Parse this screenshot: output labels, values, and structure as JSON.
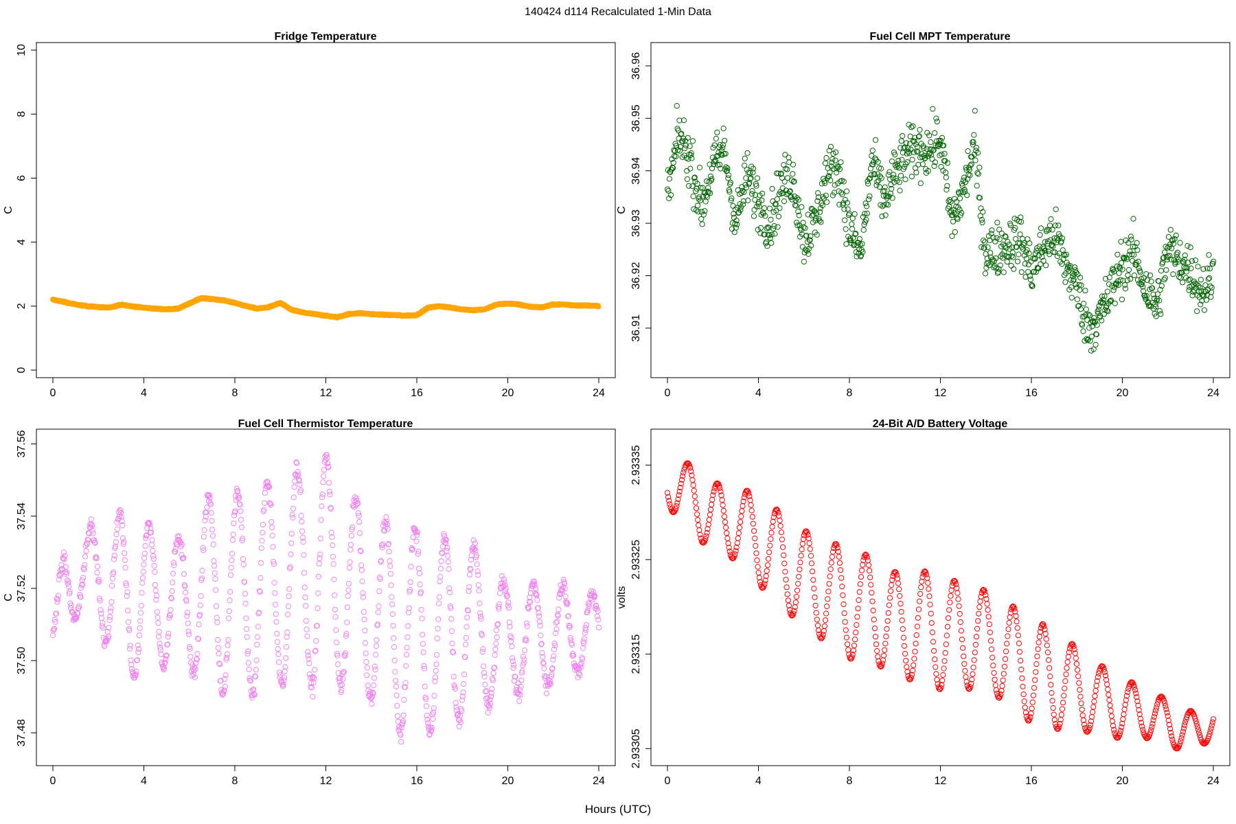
{
  "figure": {
    "title": "140424   d114   Recalculated 1-Min Data",
    "xlabel": "Hours (UTC)"
  },
  "chart_data": [
    {
      "type": "scatter",
      "id": "fridge",
      "title": "Fridge Temperature",
      "xlabel": "Hours (UTC)",
      "ylabel": "C",
      "xlim": [
        0,
        24
      ],
      "ylim": [
        0,
        10
      ],
      "xticks": [
        "0",
        "4",
        "8",
        "12",
        "16",
        "20",
        "24"
      ],
      "yticks": [
        "0",
        "2",
        "4",
        "6",
        "8",
        "10"
      ],
      "color": "#FFA500",
      "series": [
        {
          "name": "Fridge Temperature",
          "x": [
            0,
            0.5,
            1,
            1.5,
            2,
            2.5,
            3,
            3.5,
            4,
            4.5,
            5,
            5.5,
            6,
            6.5,
            7,
            7.5,
            8,
            8.5,
            9,
            9.5,
            10,
            10.5,
            11,
            11.5,
            12,
            12.5,
            13,
            13.5,
            14,
            14.5,
            15,
            15.5,
            16,
            16.5,
            17,
            17.5,
            18,
            18.5,
            19,
            19.5,
            20,
            20.5,
            21,
            21.5,
            22,
            22.5,
            23,
            23.5,
            24
          ],
          "y": [
            2.2,
            2.13,
            2.05,
            2.0,
            1.97,
            1.95,
            2.05,
            1.99,
            1.95,
            1.92,
            1.9,
            1.92,
            2.08,
            2.25,
            2.22,
            2.18,
            2.1,
            2.0,
            1.92,
            1.97,
            2.1,
            1.88,
            1.8,
            1.75,
            1.7,
            1.65,
            1.75,
            1.78,
            1.75,
            1.73,
            1.72,
            1.7,
            1.72,
            1.95,
            2.0,
            1.95,
            1.9,
            1.87,
            1.9,
            2.05,
            2.08,
            2.05,
            1.98,
            1.96,
            2.05,
            2.05,
            2.02,
            2.02,
            2.0
          ]
        }
      ]
    },
    {
      "type": "scatter",
      "id": "mpt",
      "title": "Fuel Cell MPT Temperature",
      "xlabel": "Hours (UTC)",
      "ylabel": "C",
      "xlim": [
        0,
        24
      ],
      "ylim": [
        36.902,
        36.963
      ],
      "xticks": [
        "0",
        "4",
        "8",
        "12",
        "16",
        "20",
        "24"
      ],
      "yticks": [
        "36.91",
        "36.92",
        "36.93",
        "36.94",
        "36.95",
        "36.96"
      ],
      "color": "#006400",
      "series": [
        {
          "name": "Fuel Cell MPT Temperature",
          "x": [
            0,
            0.5,
            1,
            1.5,
            2,
            2.5,
            3,
            3.5,
            4,
            4.5,
            5,
            5.5,
            6,
            6.5,
            7,
            7.5,
            8,
            8.5,
            9,
            9.5,
            10,
            10.5,
            11,
            11.5,
            12,
            12.5,
            13,
            13.5,
            14,
            14.5,
            15,
            15.5,
            16,
            16.5,
            17,
            17.5,
            18,
            18.5,
            19,
            19.5,
            20,
            20.5,
            21,
            21.5,
            22,
            22.5,
            23,
            23.5,
            24
          ],
          "y": [
            36.935,
            36.947,
            36.942,
            36.933,
            36.941,
            36.944,
            36.93,
            36.939,
            36.934,
            36.93,
            36.937,
            36.939,
            36.927,
            36.93,
            36.939,
            36.941,
            36.929,
            36.924,
            36.942,
            36.934,
            36.939,
            36.943,
            36.944,
            36.944,
            36.946,
            36.93,
            36.936,
            36.945,
            36.924,
            36.925,
            36.926,
            36.927,
            36.921,
            36.925,
            36.928,
            36.922,
            36.918,
            36.91,
            36.912,
            36.917,
            36.922,
            36.924,
            36.918,
            36.914,
            36.925,
            36.923,
            36.921,
            36.917,
            36.92
          ],
          "spread": 0.0065
        }
      ]
    },
    {
      "type": "scatter",
      "id": "thermistor",
      "title": "Fuel Cell Thermistor Temperature",
      "xlabel": "Hours (UTC)",
      "ylabel": "C",
      "xlim": [
        0,
        24
      ],
      "ylim": [
        37.473,
        37.562
      ],
      "xticks": [
        "0",
        "4",
        "8",
        "12",
        "16",
        "20",
        "24"
      ],
      "yticks": [
        "37.48",
        "37.50",
        "37.52",
        "37.54",
        "37.56"
      ],
      "color": "#EE82EE",
      "series": [
        {
          "name": "Fuel Cell Thermistor Temperature",
          "x": [
            0,
            0.5,
            1,
            1.5,
            2,
            2.5,
            3,
            3.5,
            4,
            4.5,
            5,
            5.5,
            6,
            6.5,
            7,
            7.5,
            8,
            8.5,
            9,
            9.5,
            10,
            10.5,
            11,
            11.5,
            12,
            12.5,
            13,
            13.5,
            14,
            14.5,
            15,
            15.5,
            16,
            16.5,
            17,
            17.5,
            18,
            18.5,
            19,
            19.5,
            20,
            20.5,
            21,
            21.5,
            22,
            22.5,
            23,
            23.5,
            24
          ],
          "y": [
            37.507,
            37.52,
            37.526,
            37.52,
            37.526,
            37.52,
            37.52,
            37.518,
            37.517,
            37.517,
            37.518,
            37.516,
            37.518,
            37.518,
            37.52,
            37.52,
            37.519,
            37.518,
            37.52,
            37.519,
            37.523,
            37.521,
            37.525,
            37.522,
            37.528,
            37.521,
            37.52,
            37.516,
            37.516,
            37.511,
            37.51,
            37.508,
            37.507,
            37.508,
            37.506,
            37.506,
            37.51,
            37.509,
            37.507,
            37.507,
            37.505,
            37.506,
            37.507,
            37.507,
            37.507,
            37.508,
            37.508,
            37.508,
            37.508
          ],
          "amplitude": [
            0.003,
            0.012,
            0.014,
            0.015,
            0.016,
            0.018,
            0.021,
            0.023,
            0.021,
            0.02,
            0.019,
            0.018,
            0.02,
            0.024,
            0.027,
            0.029,
            0.028,
            0.028,
            0.03,
            0.031,
            0.03,
            0.031,
            0.03,
            0.03,
            0.029,
            0.028,
            0.027,
            0.028,
            0.027,
            0.028,
            0.028,
            0.03,
            0.029,
            0.028,
            0.028,
            0.028,
            0.025,
            0.023,
            0.02,
            0.018,
            0.016,
            0.015,
            0.014,
            0.014,
            0.014,
            0.013,
            0.012,
            0.011,
            0.01
          ],
          "period_hours": 1.3
        }
      ]
    },
    {
      "type": "scatter",
      "id": "battery",
      "title": "24-Bit A/D Battery Voltage",
      "xlabel": "Hours (UTC)",
      "ylabel": "volts",
      "xlim": [
        0,
        24
      ],
      "ylim": [
        2.93304,
        2.93338
      ],
      "xticks": [
        "0",
        "4",
        "8",
        "12",
        "16",
        "20",
        "24"
      ],
      "yticks": [
        "2.93305",
        "2.93315",
        "2.93325",
        "2.93335"
      ],
      "color": "#FF0000",
      "series": [
        {
          "name": "24-Bit A/D Battery Voltage",
          "x": [
            0,
            0.5,
            1,
            1.5,
            2,
            2.5,
            3,
            3.5,
            4,
            4.5,
            5,
            5.5,
            6,
            6.5,
            7,
            7.5,
            8,
            8.5,
            9,
            9.5,
            10,
            10.5,
            11,
            11.5,
            12,
            12.5,
            13,
            13.5,
            14,
            14.5,
            15,
            15.5,
            16,
            16.5,
            17,
            17.5,
            18,
            18.5,
            19,
            19.5,
            20,
            20.5,
            21,
            21.5,
            22,
            22.5,
            23,
            23.5,
            24
          ],
          "y": [
            2.93333,
            2.93333,
            2.93332,
            2.9333,
            2.9333,
            2.93329,
            2.93329,
            2.93328,
            2.93327,
            2.93326,
            2.93325,
            2.93324,
            2.93323,
            2.93322,
            2.93322,
            2.93321,
            2.9332,
            2.9332,
            2.9332,
            2.93319,
            2.93318,
            2.93318,
            2.93318,
            2.93318,
            2.93317,
            2.93317,
            2.93317,
            2.93317,
            2.93316,
            2.93316,
            2.93315,
            2.93314,
            2.93313,
            2.93313,
            2.93312,
            2.93312,
            2.93311,
            2.93311,
            2.9331,
            2.9331,
            2.93309,
            2.93309,
            2.93309,
            2.93308,
            2.93308,
            2.93307,
            2.93307,
            2.93307,
            2.93308
          ],
          "amplitude": [
            3e-05,
            3e-05,
            3e-05,
            3.2e-05,
            3.4e-05,
            3.6e-05,
            4e-05,
            4.3e-05,
            4.6e-05,
            4.8e-05,
            5e-05,
            5e-05,
            5.2e-05,
            5.3e-05,
            5.4e-05,
            5.5e-05,
            5.5e-05,
            5.5e-05,
            5.6e-05,
            5.6e-05,
            5.7e-05,
            5.7e-05,
            5.7e-05,
            5.8e-05,
            5.8e-05,
            5.8e-05,
            5.7e-05,
            5.7e-05,
            5.6e-05,
            5.5e-05,
            5.5e-05,
            5.4e-05,
            5.3e-05,
            5.2e-05,
            5e-05,
            4.8e-05,
            4.6e-05,
            4.2e-05,
            3.8e-05,
            3.5e-05,
            3.2e-05,
            3e-05,
            2.8e-05,
            2.6e-05,
            2.4e-05,
            2.2e-05,
            2e-05,
            1.8e-05,
            1.6e-05
          ],
          "period_hours": 1.3
        }
      ]
    }
  ]
}
